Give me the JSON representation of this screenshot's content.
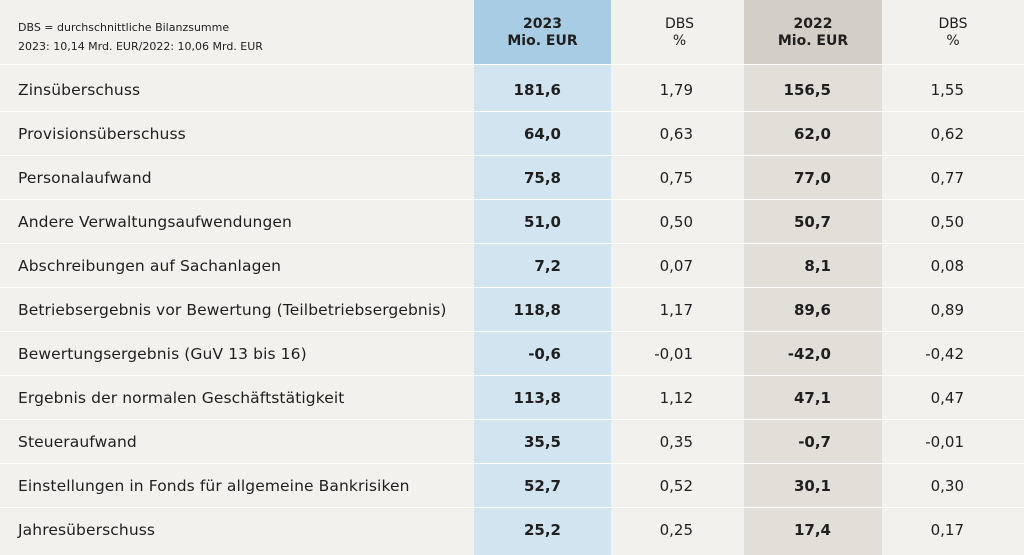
{
  "note": {
    "line1": "DBS = durchschnittliche Bilanzsumme",
    "line2": "2023: 10,14 Mrd. EUR/2022: 10,06 Mrd. EUR"
  },
  "header": {
    "col_2023_year": "2023",
    "col_2023_unit": "Mio. EUR",
    "col_dbs1_a": "DBS",
    "col_dbs1_b": "%",
    "col_2022_year": "2022",
    "col_2022_unit": "Mio. EUR",
    "col_dbs2_a": "DBS",
    "col_dbs2_b": "%"
  },
  "colors": {
    "background": "#f3f1ee",
    "band_2023": "#d2e4ef",
    "header_2023": "#a7cce3",
    "band_2022": "#e2dfd9",
    "header_2022": "#d3cec6"
  },
  "rows": [
    {
      "label": "Zinsüberschuss",
      "v2023": "181,6",
      "dbs2023": "1,79",
      "v2022": "156,5",
      "dbs2022": "1,55"
    },
    {
      "label": "Provisionsüberschuss",
      "v2023": "64,0",
      "dbs2023": "0,63",
      "v2022": "62,0",
      "dbs2022": "0,62"
    },
    {
      "label": "Personalaufwand",
      "v2023": "75,8",
      "dbs2023": "0,75",
      "v2022": "77,0",
      "dbs2022": "0,77"
    },
    {
      "label": "Andere Verwaltungsaufwendungen",
      "v2023": "51,0",
      "dbs2023": "0,50",
      "v2022": "50,7",
      "dbs2022": "0,50"
    },
    {
      "label": "Abschreibungen auf Sachanlagen",
      "v2023": "7,2",
      "dbs2023": "0,07",
      "v2022": "8,1",
      "dbs2022": "0,08"
    },
    {
      "label": "Betriebsergebnis vor Bewertung (Teilbetriebsergebnis)",
      "v2023": "118,8",
      "dbs2023": "1,17",
      "v2022": "89,6",
      "dbs2022": "0,89"
    },
    {
      "label": "Bewertungsergebnis (GuV 13 bis 16)",
      "v2023": "-0,6",
      "dbs2023": "-0,01",
      "v2022": "-42,0",
      "dbs2022": "-0,42"
    },
    {
      "label": "Ergebnis der normalen Geschäftstätigkeit",
      "v2023": "113,8",
      "dbs2023": "1,12",
      "v2022": "47,1",
      "dbs2022": "0,47"
    },
    {
      "label": "Steueraufwand",
      "v2023": "35,5",
      "dbs2023": "0,35",
      "v2022": "-0,7",
      "dbs2022": "-0,01"
    },
    {
      "label": "Einstellungen in Fonds für allgemeine Bankrisiken",
      "v2023": "52,7",
      "dbs2023": "0,52",
      "v2022": "30,1",
      "dbs2022": "0,30"
    },
    {
      "label": "Jahresüberschuss",
      "v2023": "25,2",
      "dbs2023": "0,25",
      "v2022": "17,4",
      "dbs2022": "0,17"
    }
  ]
}
